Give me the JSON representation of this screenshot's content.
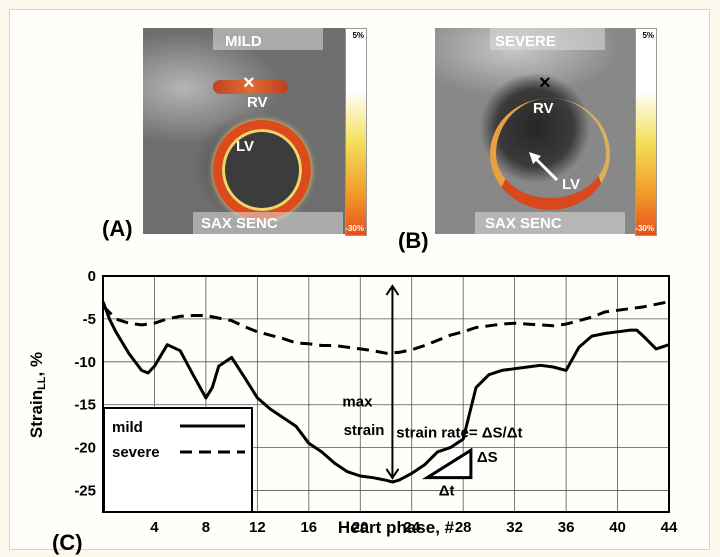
{
  "panels": {
    "a": {
      "label": "(A)",
      "title": "MILD",
      "marker": "×",
      "rv": "RV",
      "lv": "LV",
      "footer": "SAX SENC",
      "scale_top": "5%",
      "scale_bottom": "-30%"
    },
    "b": {
      "label": "(B)",
      "title": "SEVERE",
      "marker": "×",
      "rv": "RV",
      "lv": "LV",
      "footer": "SAX SENC",
      "scale_top": "5%",
      "scale_bottom": "-30%"
    },
    "c": {
      "label": "(C)"
    }
  },
  "colors": {
    "background": "#fef7ec",
    "scale_top": "#ffffff",
    "scale_mid": "#f2e05a",
    "scale_bottom": "#e8501a"
  },
  "chart_data": {
    "type": "line",
    "xlabel": "Heart phase, #",
    "ylabel_main": "Strain",
    "ylabel_sub": "LL",
    "ylabel_unit": ", %",
    "xlim": [
      0,
      44
    ],
    "ylim": [
      -27.5,
      0
    ],
    "x_ticks": [
      4,
      8,
      12,
      16,
      20,
      24,
      28,
      32,
      36,
      40,
      44
    ],
    "y_ticks": [
      0,
      -5,
      -10,
      -15,
      -20,
      -25
    ],
    "grid": true,
    "legend_position": "bottom-left",
    "series": [
      {
        "name": "mild",
        "style": "solid",
        "x": [
          0,
          0.5,
          1,
          2,
          3,
          3.5,
          4,
          5,
          6,
          7,
          8,
          8.5,
          9,
          10,
          11,
          12,
          13,
          14,
          15,
          16,
          17,
          18,
          19,
          20,
          21,
          22,
          22.5,
          23,
          24,
          25,
          26,
          27,
          28,
          28.5,
          29,
          30,
          31,
          32,
          33,
          34,
          35,
          36,
          37,
          38,
          39,
          40,
          41,
          41.5,
          42,
          43,
          44
        ],
        "y": [
          -3,
          -5,
          -6.5,
          -9,
          -11,
          -11.3,
          -10.5,
          -8,
          -8.7,
          -11.5,
          -14.2,
          -13,
          -10.5,
          -9.5,
          -11.8,
          -14.2,
          -15.5,
          -16.5,
          -17.5,
          -19.5,
          -20.5,
          -21.8,
          -22.8,
          -23.3,
          -23.5,
          -23.8,
          -24,
          -23.8,
          -23,
          -22,
          -20.5,
          -20,
          -19,
          -16,
          -13,
          -11.5,
          -11,
          -10.8,
          -10.6,
          -10.4,
          -10.6,
          -11,
          -8.3,
          -7,
          -6.7,
          -6.5,
          -6.3,
          -6.3,
          -7,
          -8.5,
          -8
        ]
      },
      {
        "name": "severe",
        "style": "dashed",
        "x": [
          0,
          1,
          2,
          3,
          4,
          5,
          6,
          7,
          8,
          9,
          10,
          11,
          12,
          13,
          14,
          15,
          16,
          17,
          18,
          19,
          20,
          21,
          22,
          23,
          24,
          25,
          26,
          27,
          28,
          29,
          30,
          31,
          32,
          33,
          34,
          35,
          36,
          37,
          38,
          39,
          40,
          41,
          42,
          43,
          44
        ],
        "y": [
          -3.5,
          -5,
          -5.5,
          -5.7,
          -5.5,
          -5,
          -4.7,
          -4.6,
          -4.6,
          -4.9,
          -5.2,
          -5.9,
          -6.5,
          -6.9,
          -7.3,
          -7.8,
          -7.9,
          -8.1,
          -8.1,
          -8.3,
          -8.5,
          -8.7,
          -9,
          -8.9,
          -8.6,
          -8.1,
          -7.5,
          -6.9,
          -6.5,
          -6,
          -5.8,
          -5.6,
          -5.5,
          -5.6,
          -5.7,
          -5.8,
          -5.6,
          -5.2,
          -4.8,
          -4.2,
          -4,
          -3.8,
          -3.6,
          -3.3,
          -3
        ]
      }
    ],
    "annotations": {
      "max_line1": "max",
      "max_line2": "strain",
      "max_arrow_x": 22.5,
      "max_arrow_from": 0,
      "max_arrow_to": -24,
      "rate_text": "strain rate= ΔS/Δt",
      "delta_s": "ΔS",
      "delta_t": "Δt"
    }
  }
}
